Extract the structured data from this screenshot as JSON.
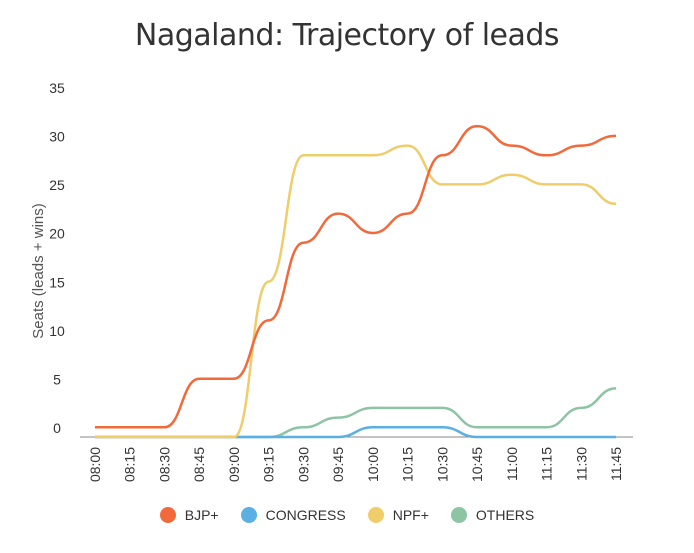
{
  "chart_data": {
    "type": "line",
    "title": "Nagaland: Trajectory of leads",
    "xlabel": "",
    "ylabel": "Seats (leads + wins)",
    "ylim": [
      0,
      35
    ],
    "yticks": [
      "0",
      "5",
      "10",
      "15",
      "20",
      "25",
      "30",
      "35"
    ],
    "categories": [
      "08:00",
      "08:15",
      "08:30",
      "08:45",
      "09:00",
      "09:15",
      "09:30",
      "09:45",
      "10:00",
      "10:15",
      "10:30",
      "10:45",
      "11:00",
      "11:15",
      "11:30",
      "11:45"
    ],
    "grid": false,
    "legend_position": "bottom",
    "series": [
      {
        "name": "BJP+",
        "color": "#f26a3b",
        "values": [
          1,
          1,
          1,
          6,
          6,
          12,
          20,
          23,
          21,
          23,
          29,
          32,
          30,
          29,
          30,
          31
        ]
      },
      {
        "name": "CONGRESS",
        "color": "#5ab0e3",
        "values": [
          0,
          0,
          0,
          0,
          0,
          0,
          0,
          0,
          1,
          1,
          1,
          0,
          0,
          0,
          0,
          0
        ]
      },
      {
        "name": "NPF+",
        "color": "#f0cd6b",
        "values": [
          0,
          0,
          0,
          0,
          0,
          16,
          29,
          29,
          29,
          30,
          26,
          26,
          27,
          26,
          26,
          24
        ]
      },
      {
        "name": "OTHERS",
        "color": "#8cc4a4",
        "values": [
          0,
          0,
          0,
          0,
          0,
          0,
          1,
          2,
          3,
          3,
          3,
          1,
          1,
          1,
          3,
          5
        ]
      }
    ]
  }
}
